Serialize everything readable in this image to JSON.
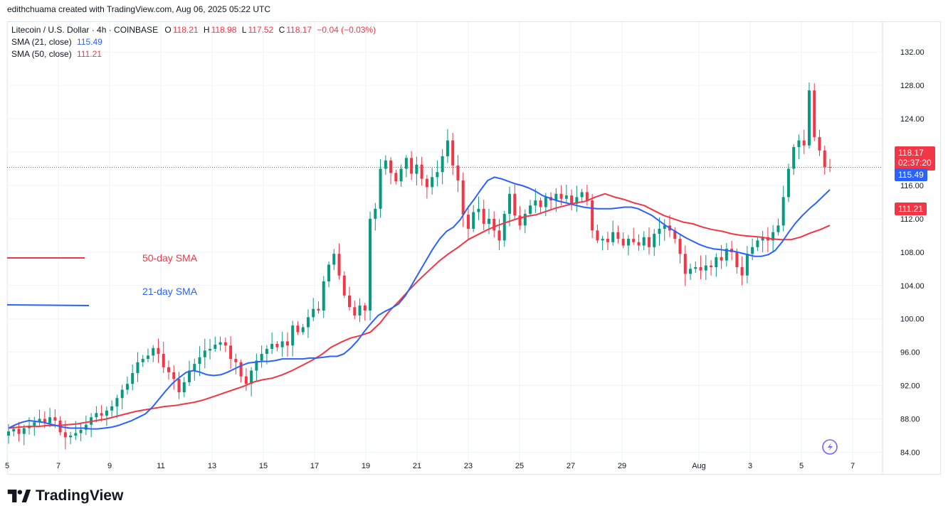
{
  "header": {
    "caption": "edithchuama created with TradingView.com, Aug 06, 2025 05:22 UTC"
  },
  "legend": {
    "symbol": "Litecoin / U.S. Dollar · 4h · COINBASE",
    "o_label": "O",
    "o": "118.21",
    "h_label": "H",
    "h": "118.98",
    "l_label": "L",
    "l": "117.52",
    "c_label": "C",
    "c": "118.17",
    "change": "−0.04 (−0.03%)",
    "sma21_label": "SMA (21, close)",
    "sma21_value": "115.49",
    "sma50_label": "SMA (50, close)",
    "sma50_value": "111.21"
  },
  "annotations": {
    "sma50": "50-day SMA",
    "sma21": "21-day SMA"
  },
  "price_tags": {
    "last": "118.17",
    "countdown": "02:37:20",
    "sma21": "115.49",
    "sma50": "111.21"
  },
  "brand": {
    "name": "TradingView"
  },
  "colors": {
    "up": "#089981",
    "down": "#f23645",
    "sma21": "#2962ff",
    "sma50": "#f23645",
    "grid": "#f0f3fa"
  },
  "chart_data": {
    "type": "candlestick",
    "title": "Litecoin / U.S. Dollar · 4h · COINBASE",
    "xlabel": "",
    "ylabel": "",
    "y_ticks": [
      "132.00",
      "128.00",
      "124.00",
      "120.00",
      "116.00",
      "112.00",
      "108.00",
      "104.00",
      "100.00",
      "96.00",
      "92.00",
      "88.00",
      "84.00"
    ],
    "ylim": [
      81.4,
      135.6
    ],
    "x_ticks": [
      {
        "label": "5",
        "day": 5
      },
      {
        "label": "7",
        "day": 7
      },
      {
        "label": "9",
        "day": 9
      },
      {
        "label": "11",
        "day": 11
      },
      {
        "label": "13",
        "day": 13
      },
      {
        "label": "15",
        "day": 15
      },
      {
        "label": "17",
        "day": 17
      },
      {
        "label": "19",
        "day": 19
      },
      {
        "label": "21",
        "day": 21
      },
      {
        "label": "23",
        "day": 23
      },
      {
        "label": "25",
        "day": 25
      },
      {
        "label": "27",
        "day": 27
      },
      {
        "label": "29",
        "day": 29
      },
      {
        "label": "Aug",
        "day": 32
      },
      {
        "label": "3",
        "day": 34
      },
      {
        "label": "5",
        "day": 36
      },
      {
        "label": "7",
        "day": 38
      }
    ],
    "close": [
      86.5,
      86.8,
      86.2,
      86.9,
      87.2,
      87.6,
      88.0,
      87.5,
      88.2,
      87.8,
      86.4,
      85.8,
      86.0,
      86.3,
      86.7,
      87.3,
      88.2,
      88.7,
      88.4,
      89.0,
      89.5,
      90.5,
      91.5,
      92.2,
      93.5,
      94.8,
      95.2,
      95.6,
      96.5,
      95.8,
      94.2,
      93.6,
      92.8,
      91.2,
      92.4,
      93.8,
      94.6,
      95.4,
      96.2,
      96.4,
      96.9,
      97.2,
      96.8,
      95.2,
      94.8,
      93.1,
      92.2,
      93.8,
      95.0,
      95.8,
      96.4,
      97.0,
      96.6,
      97.3,
      96.8,
      99.2,
      98.4,
      99.0,
      100.2,
      101.2,
      101.0,
      104.5,
      106.5,
      107.8,
      105.2,
      102.8,
      101.4,
      100.4,
      101.6,
      101.0,
      112.0,
      113.2,
      118.0,
      119.0,
      117.5,
      116.5,
      118.0,
      119.3,
      117.4,
      118.5,
      116.8,
      115.8,
      117.0,
      117.6,
      119.5,
      121.4,
      118.4,
      116.6,
      112.5,
      110.8,
      112.8,
      113.2,
      111.4,
      112.0,
      110.6,
      109.4,
      112.6,
      115.0,
      112.4,
      111.2,
      112.6,
      113.6,
      114.2,
      113.4,
      114.6,
      114.2,
      115.0,
      114.4,
      114.8,
      113.8,
      114.6,
      115.2,
      114.2,
      110.6,
      109.4,
      109.6,
      109.2,
      110.4,
      109.6,
      108.8,
      109.6,
      109.2,
      108.8,
      109.8,
      108.6,
      110.2,
      110.8,
      111.2,
      110.6,
      109.6,
      107.8,
      105.4,
      106.0,
      106.2,
      105.8,
      106.4,
      106.2,
      107.4,
      107.0,
      108.4,
      108.0,
      106.2,
      105.2,
      107.8,
      108.6,
      109.4,
      109.8,
      109.4,
      110.4,
      111.2,
      114.6,
      118.0,
      120.6,
      121.4,
      120.8,
      127.4,
      121.8,
      120.2,
      118.21,
      118.17
    ],
    "sma21": [
      86.9,
      87.3,
      87.6,
      87.8,
      87.7,
      87.6,
      87.4,
      87.2,
      87.0,
      86.9,
      86.9,
      86.9,
      86.8,
      86.8,
      86.9,
      87.0,
      87.2,
      87.5,
      87.8,
      88.2,
      88.6,
      89.4,
      90.4,
      91.4,
      92.3,
      93.0,
      93.6,
      93.8,
      93.6,
      93.3,
      93.2,
      93.3,
      93.6,
      94.0,
      94.4,
      94.7,
      94.8,
      94.9,
      94.9,
      95.0,
      95.2,
      95.2,
      95.2,
      95.2,
      95.3,
      95.3,
      95.4,
      95.5,
      95.5,
      95.8,
      96.5,
      97.4,
      98.5,
      99.5,
      100.4,
      100.9,
      101.3,
      101.8,
      102.8,
      104.2,
      105.6,
      107.0,
      108.4,
      109.6,
      110.5,
      111.0,
      111.9,
      113.2,
      114.3,
      115.5,
      116.6,
      117.0,
      116.8,
      116.5,
      116.2,
      116.0,
      115.7,
      115.3,
      114.8,
      114.5,
      114.2,
      114.0,
      113.8,
      113.6,
      113.4,
      113.3,
      113.2,
      113.2,
      113.2,
      113.3,
      113.4,
      113.4,
      113.2,
      112.8,
      112.4,
      111.8,
      111.2,
      110.7,
      110.2,
      109.7,
      109.3,
      108.9,
      108.6,
      108.4,
      108.3,
      108.2,
      108.1,
      107.9,
      107.7,
      107.5,
      107.5,
      107.7,
      108.2,
      109.2,
      110.4,
      111.5,
      112.4,
      113.2,
      113.9,
      114.7,
      115.49
    ],
    "sma50": [
      86.9,
      87.0,
      87.1,
      87.1,
      87.2,
      87.2,
      87.3,
      87.4,
      87.6,
      87.8,
      88.0,
      88.3,
      88.6,
      88.9,
      89.1,
      89.3,
      89.5,
      89.6,
      89.8,
      90.0,
      90.3,
      90.7,
      91.1,
      91.5,
      91.9,
      92.4,
      92.7,
      92.9,
      93.3,
      93.8,
      94.4,
      95.0,
      95.7,
      96.6,
      97.2,
      97.7,
      98.0,
      98.4,
      99.5,
      101.0,
      102.2,
      103.5,
      104.7,
      105.8,
      106.9,
      107.8,
      108.6,
      109.5,
      110.1,
      110.7,
      111.2,
      111.6,
      112.0,
      112.3,
      112.5,
      112.9,
      113.3,
      113.6,
      113.9,
      114.1,
      114.6,
      115.0,
      114.6,
      114.3,
      113.9,
      113.6,
      113.0,
      112.4,
      112.0,
      111.6,
      111.4,
      111.0,
      110.7,
      110.5,
      110.2,
      110.0,
      109.9,
      109.8,
      109.6,
      109.5,
      109.5,
      109.8,
      110.3,
      110.7,
      111.21
    ],
    "last_price": 118.17,
    "series": [
      {
        "name": "SMA (21, close)",
        "ref": "sma21"
      },
      {
        "name": "SMA (50, close)",
        "ref": "sma50"
      }
    ],
    "grid": true
  }
}
